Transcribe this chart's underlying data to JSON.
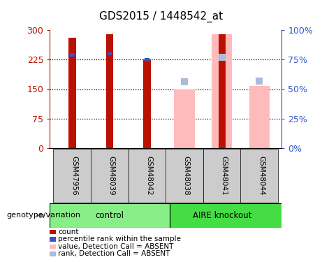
{
  "title": "GDS2015 / 1448542_at",
  "samples": [
    "GSM47956",
    "GSM48039",
    "GSM48042",
    "GSM48038",
    "GSM48041",
    "GSM48044"
  ],
  "count_values": [
    280,
    290,
    225,
    null,
    290,
    null
  ],
  "rank_values_pct": [
    79,
    80,
    75,
    null,
    78,
    null
  ],
  "absent_value": [
    null,
    null,
    null,
    150,
    290,
    158
  ],
  "absent_rank_pct": [
    null,
    null,
    null,
    56,
    77,
    57
  ],
  "ylim_left": [
    0,
    300
  ],
  "ylim_right": [
    0,
    100
  ],
  "yticks_left": [
    0,
    75,
    150,
    225,
    300
  ],
  "yticks_right": [
    0,
    25,
    50,
    75,
    100
  ],
  "yticklabels_left": [
    "0",
    "75",
    "150",
    "225",
    "300"
  ],
  "yticklabels_right": [
    "0%",
    "25%",
    "50%",
    "75%",
    "100%"
  ],
  "color_count": "#bb1100",
  "color_rank": "#3355cc",
  "color_absent_value": "#ffbbbb",
  "color_absent_rank": "#aabbdd",
  "color_control_bg": "#88ee88",
  "color_knockout_bg": "#44dd44",
  "color_sample_bg": "#cccccc",
  "bar_width": 0.55,
  "rank_bar_width": 0.12,
  "legend_items": [
    {
      "label": "count",
      "color": "#bb1100"
    },
    {
      "label": "percentile rank within the sample",
      "color": "#3355cc"
    },
    {
      "label": "value, Detection Call = ABSENT",
      "color": "#ffbbbb"
    },
    {
      "label": "rank, Detection Call = ABSENT",
      "color": "#aabbdd"
    }
  ]
}
